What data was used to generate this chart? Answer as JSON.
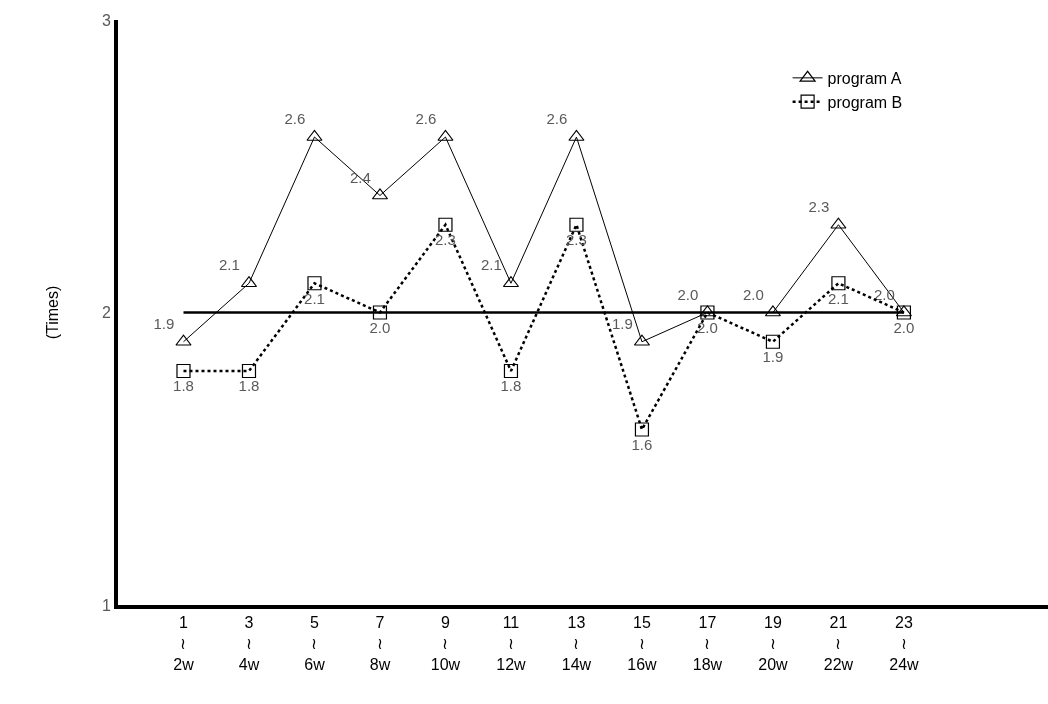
{
  "chart_data": {
    "type": "line",
    "ylabel": "(Times)",
    "categories": [
      "1\n≀\n2w",
      "3\n≀\n4w",
      "5\n≀\n6w",
      "7\n≀\n8w",
      "9\n≀\n10w",
      "11\n≀\n12w",
      "13\n≀\n14w",
      "15\n≀\n16w",
      "17\n≀\n18w",
      "19\n≀\n20w",
      "21\n≀\n22w",
      "23\n≀\n24w"
    ],
    "series": [
      {
        "name": "program A",
        "color": "#000000",
        "marker": "triangle",
        "line_style": "solid",
        "values": [
          1.9,
          2.1,
          2.6,
          2.4,
          2.6,
          2.1,
          2.6,
          1.9,
          2.0,
          2.0,
          2.3,
          2.0
        ],
        "value_labels": [
          "1.9",
          "2.1",
          "2.6",
          "2.4",
          "2.6",
          "2.1",
          "2.6",
          "1.9",
          "2.0",
          "2.0",
          "2.3",
          "2.0"
        ]
      },
      {
        "name": "program B",
        "color": "#000000",
        "marker": "square",
        "line_style": "dotted",
        "values": [
          1.8,
          1.8,
          2.1,
          2.0,
          2.3,
          1.8,
          2.3,
          1.6,
          2.0,
          1.9,
          2.1,
          2.0
        ],
        "value_labels": [
          "1.8",
          "1.8",
          "2.1",
          "2.0",
          "2.3",
          "1.8",
          "2.3",
          "1.6",
          "2.0",
          "1.9",
          "2.1",
          "2.0"
        ]
      }
    ],
    "ylim": [
      1,
      3
    ],
    "yticks": [
      1,
      2,
      3
    ],
    "grid": false,
    "legend": "top right",
    "ref_lines": [
      {
        "axis": "y",
        "value": 2,
        "color": "#000000",
        "line_style": "solid"
      }
    ]
  }
}
